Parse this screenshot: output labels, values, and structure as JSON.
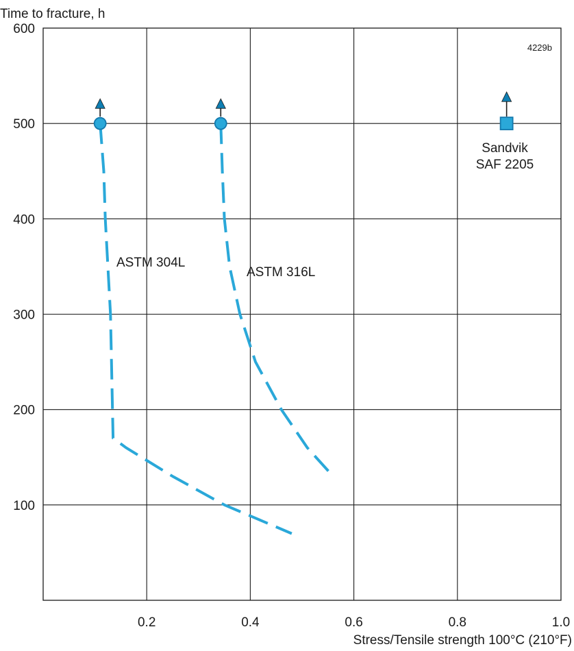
{
  "chart_data": {
    "type": "line",
    "title": "",
    "code": "4229b",
    "xlabel": "Stress/Tensile strength 100°C (210°F)",
    "ylabel": "Time to fracture, h",
    "xlim": [
      0,
      1.0
    ],
    "ylim": [
      0,
      600
    ],
    "x_ticks": [
      0.2,
      0.4,
      0.6,
      0.8,
      1.0
    ],
    "x_tick_labels": [
      "0.2",
      "0.4",
      "0.6",
      "0.8",
      "1.0"
    ],
    "y_ticks": [
      100,
      200,
      300,
      400,
      500,
      600
    ],
    "y_tick_labels": [
      "100",
      "200",
      "300",
      "400",
      "500",
      "600"
    ],
    "grid": true,
    "line_color": "#2aa8d9",
    "marker_fill": "#2aa8d9",
    "arrow_color": "#0f7fb3",
    "marker_stroke": "#1479ad",
    "series": [
      {
        "name": "ASTM 304L",
        "style": "dashed",
        "x": [
          0.11,
          0.117,
          0.12,
          0.125,
          0.13,
          0.135,
          0.16,
          0.25,
          0.35,
          0.48
        ],
        "y": [
          500,
          450,
          400,
          350,
          300,
          170,
          160,
          130,
          100,
          70
        ],
        "marker": {
          "shape": "circle",
          "x": 0.11,
          "y": 500,
          "arrow": "up"
        }
      },
      {
        "name": "ASTM 316L",
        "style": "dashed",
        "x": [
          0.343,
          0.346,
          0.35,
          0.36,
          0.38,
          0.41,
          0.46,
          0.51,
          0.56
        ],
        "y": [
          500,
          450,
          400,
          350,
          300,
          250,
          200,
          160,
          130
        ],
        "marker": {
          "shape": "circle",
          "x": 0.343,
          "y": 500,
          "arrow": "up"
        }
      },
      {
        "name": "Sandvik SAF 2205",
        "name_lines": [
          "Sandvik",
          "SAF 2205"
        ],
        "style": "marker-only",
        "x": [
          0.895
        ],
        "y": [
          500
        ],
        "marker": {
          "shape": "square",
          "x": 0.895,
          "y": 500,
          "arrow": "up"
        }
      }
    ]
  }
}
